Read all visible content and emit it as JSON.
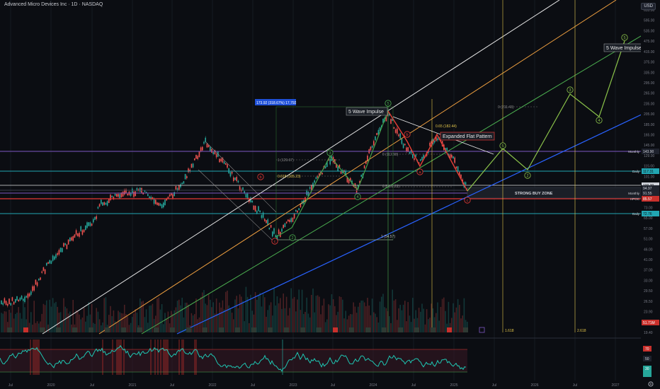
{
  "header": {
    "title": "Advanced Micro Devices Inc · 1D · NASDAQ",
    "currency": "USD"
  },
  "y_axis": {
    "ticks": [
      "655.00",
      "595.00",
      "535.00",
      "475.00",
      "415.00",
      "375.00",
      "335.00",
      "295.00",
      "265.00",
      "235.00",
      "205.00",
      "185.00",
      "165.00",
      "145.00",
      "129.00",
      "115.00",
      "101.00",
      "91.00",
      "81.00",
      "73.00",
      "65.00",
      "57.00",
      "51.00",
      "46.00",
      "41.00",
      "37.00",
      "33.00",
      "29.50",
      "26.50",
      "23.90",
      "21.50",
      "19.40"
    ],
    "price_tags": [
      {
        "label": "143.90",
        "note": "Monthly",
        "color": "#1e222d",
        "text": "#d1d4dc"
      },
      {
        "label": "117.31",
        "note": "Daily",
        "color": "#22a6b3",
        "text": "#0b0d12"
      },
      {
        "label": "100.39",
        "note": "",
        "color": "#d1d4dc",
        "text": "#0b0d12"
      },
      {
        "label": "94.97",
        "note": "",
        "color": "#1e222d",
        "text": "#d1d4dc"
      },
      {
        "label": "91.55",
        "note": "Monthly",
        "color": "#1e222d",
        "text": "#d1d4dc"
      },
      {
        "label": "85.57",
        "note": "HPOC",
        "color": "#c9302c",
        "text": "#ffffff"
      },
      {
        "label": "72.76",
        "note": "Daily",
        "color": "#22a6b3",
        "text": "#0b0d12"
      },
      {
        "label": "51.71M",
        "note": "",
        "color": "#c9302c",
        "text": "#ffffff"
      }
    ]
  },
  "rsi_axis": {
    "ticks": [
      "70",
      "50",
      "30"
    ]
  },
  "x_axis": {
    "ticks": [
      "Jul",
      "2020",
      "Jul",
      "2021",
      "Jul",
      "2022",
      "Jul",
      "2023",
      "Jul",
      "2024",
      "Jul",
      "2025",
      "Jul",
      "2026",
      "Jul",
      "2027"
    ]
  },
  "annotations": {
    "five_wave_top": "5 Wave Impulse",
    "five_wave_right": "5 Wave Impulse",
    "expanded_flat": "Expanded Flat Pattern",
    "strong_buy": "STRONG BUY ZONE",
    "measure": "173.92 (318.67%) 17,792",
    "fib_0_65": "0.65 (182.44)",
    "fib_0_618": "0.618 (105.23)",
    "fib_1_a": "1 (129.67)",
    "fib_1_b": "1 (54.57)",
    "fib_0_5": "0.5 (91.22)",
    "fib_0_right": "0 (211.43)",
    "fib_0_mid": "0 (112.98)",
    "ext_1618": "1.618",
    "ext_2618": "2.618"
  },
  "wave_labels": [
    "1",
    "2",
    "3",
    "4",
    "5",
    "a",
    "b",
    "c",
    "A",
    "B",
    "C"
  ],
  "colors": {
    "background": "#0b0d12",
    "up": "#26a69a",
    "down": "#ef5350",
    "white_channel": "#e8e8e8",
    "orange_channel": "#f0a040",
    "green_channel": "#4caf50",
    "blue_channel": "#2962ff",
    "projection": "#8bc34a",
    "teal_levels": "#22a6b3",
    "purple_level": "#7e57c2",
    "red_level": "#e53935",
    "rsi": "#1ec8b4",
    "fib_yellow": "#e6c84a"
  }
}
